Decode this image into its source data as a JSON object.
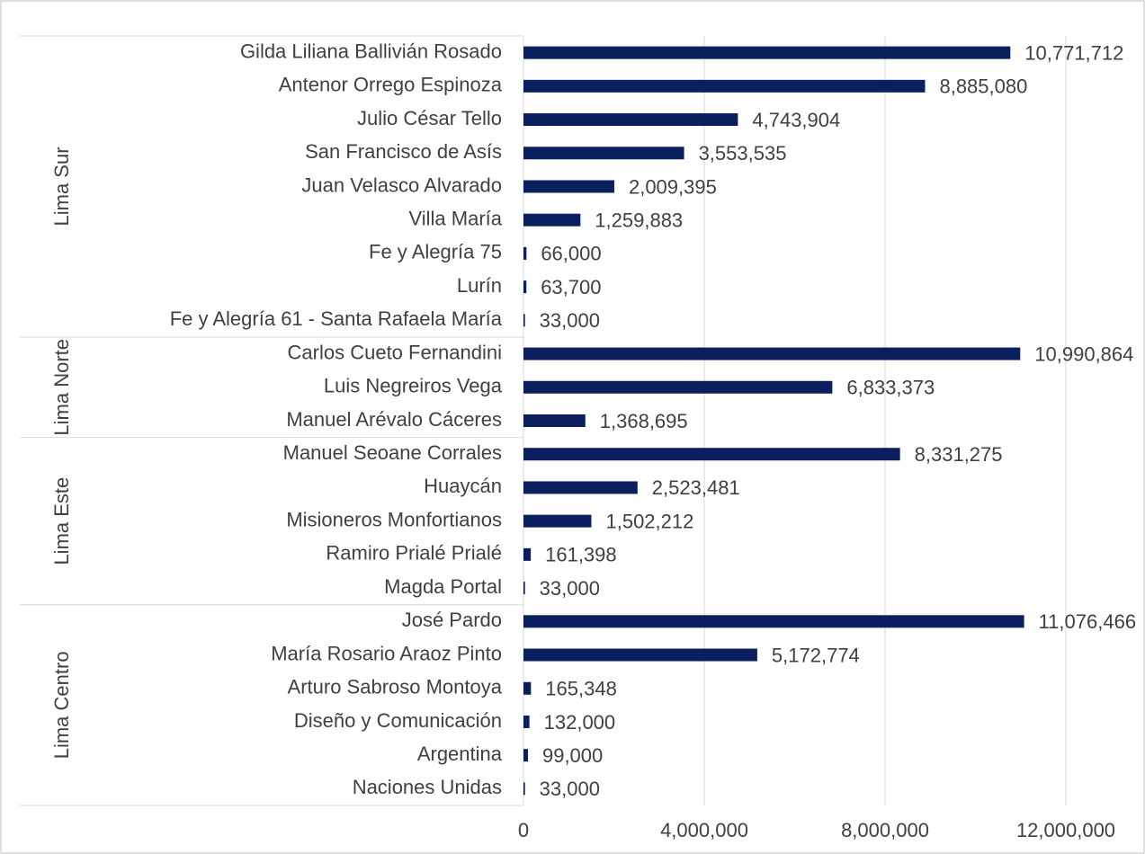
{
  "chart_data": {
    "type": "bar",
    "color": "#0b1f5e",
    "grid": true,
    "xlim": [
      0,
      12000000
    ],
    "xticks": [
      0,
      {
        "value": 4000000,
        "label": "4,000,000"
      },
      {
        "value": 8000000,
        "label": "8,000,000"
      },
      {
        "value": 12000000,
        "label": "12,000,000"
      }
    ],
    "groups": [
      {
        "name": "Lima Sur",
        "categories": [
          "Gilda Liliana Ballivián Rosado",
          "Antenor Orrego Espinoza",
          "Julio César Tello",
          "San Francisco de Asís",
          "Juan Velasco Alvarado",
          "Villa María",
          "Fe y Alegría 75",
          "Lurín",
          "Fe y Alegría 61 - Santa Rafaela María"
        ],
        "values": [
          10771712,
          8885080,
          4743904,
          3553535,
          2009395,
          1259883,
          66000,
          63700,
          33000
        ],
        "value_labels": [
          "10,771,712",
          "8,885,080",
          "4,743,904",
          "3,553,535",
          "2,009,395",
          "1,259,883",
          "66,000",
          "63,700",
          "33,000"
        ]
      },
      {
        "name": "Lima Norte",
        "categories": [
          "Carlos Cueto Fernandini",
          "Luis Negreiros Vega",
          "Manuel Arévalo Cáceres"
        ],
        "values": [
          10990864,
          6833373,
          1368695
        ],
        "value_labels": [
          "10,990,864",
          "6,833,373",
          "1,368,695"
        ]
      },
      {
        "name": "Lima Este",
        "categories": [
          "Manuel Seoane Corrales",
          "Huaycán",
          "Misioneros Monfortianos",
          "Ramiro Prialé Prialé",
          "Magda Portal"
        ],
        "values": [
          8331275,
          2523481,
          1502212,
          161398,
          33000
        ],
        "value_labels": [
          "8,331,275",
          "2,523,481",
          "1,502,212",
          "161,398",
          "33,000"
        ]
      },
      {
        "name": "Lima Centro",
        "categories": [
          "José Pardo",
          "María Rosario Araoz Pinto",
          "Arturo Sabroso Montoya",
          "Diseño y Comunicación",
          "Argentina",
          "Naciones Unidas"
        ],
        "values": [
          11076466,
          5172774,
          165348,
          132000,
          99000,
          33000
        ],
        "value_labels": [
          "11,076,466",
          "5,172,774",
          "165,348",
          "132,000",
          "99,000",
          "33,000"
        ]
      }
    ]
  }
}
